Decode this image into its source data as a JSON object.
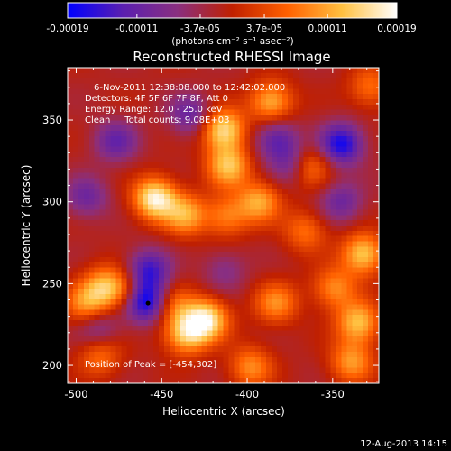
{
  "chart_data": {
    "type": "heatmap",
    "title": "Reconstructed RHESSI Image",
    "colorbar": {
      "ticks": [
        "-0.00019",
        "-0.00011",
        "-3.7e-05",
        "3.7e-05",
        "0.00011",
        "0.00019"
      ],
      "tick_values": [
        -0.00019,
        -0.00011,
        -3.7e-05,
        3.7e-05,
        0.00011,
        0.00019
      ],
      "range": [
        -0.00019,
        0.00019
      ],
      "unit_label": "(photons cm⁻² s⁻¹ asec⁻²)",
      "colormap": [
        "#0000ff",
        "#5a1fb0",
        "#8a2f80",
        "#c02000",
        "#ff6000",
        "#ffc040",
        "#ffffff"
      ]
    },
    "annotations": [
      "6-Nov-2011 12:38:08.000 to 12:42:02.000",
      "Detectors: 4F 5F 6F 7F 8F, Att 0",
      "Energy Range: 12.0 - 25.0 keV",
      "Clean     Total counts: 9.08E+03",
      "Position of Peak = [-454,302]"
    ],
    "xlabel": "Heliocentric X (arcsec)",
    "ylabel": "Heliocentric Y (arcsec)",
    "xlim": [
      -505,
      -323
    ],
    "ylim": [
      189,
      382
    ],
    "xticks": [
      -500,
      -450,
      -400,
      -350
    ],
    "yticks": [
      200,
      250,
      300,
      350
    ],
    "peak": [
      -454,
      302
    ],
    "min_marker": [
      -458,
      238
    ],
    "blobs": [
      {
        "x": -454,
        "y": 302,
        "v": 1.0
      },
      {
        "x": -436,
        "y": 292,
        "v": 0.65
      },
      {
        "x": -414,
        "y": 344,
        "v": 0.9
      },
      {
        "x": -411,
        "y": 322,
        "v": 0.75
      },
      {
        "x": -386,
        "y": 361,
        "v": 0.7
      },
      {
        "x": -393,
        "y": 300,
        "v": 0.65
      },
      {
        "x": -412,
        "y": 291,
        "v": 0.5
      },
      {
        "x": -364,
        "y": 322,
        "v": 0.6
      },
      {
        "x": -424,
        "y": 228,
        "v": 0.95
      },
      {
        "x": -436,
        "y": 219,
        "v": 0.75
      },
      {
        "x": -444,
        "y": 237,
        "v": 0.45
      },
      {
        "x": -383,
        "y": 238,
        "v": 0.55
      },
      {
        "x": -398,
        "y": 199,
        "v": 0.55
      },
      {
        "x": -484,
        "y": 248,
        "v": 0.6
      },
      {
        "x": -494,
        "y": 237,
        "v": 0.55
      },
      {
        "x": -471,
        "y": 246,
        "v": 0.45
      },
      {
        "x": -486,
        "y": 206,
        "v": 0.45
      },
      {
        "x": -332,
        "y": 268,
        "v": 0.8
      },
      {
        "x": -335,
        "y": 226,
        "v": 0.75
      },
      {
        "x": -349,
        "y": 247,
        "v": 0.55
      },
      {
        "x": -339,
        "y": 202,
        "v": 0.6
      },
      {
        "x": -366,
        "y": 282,
        "v": 0.45
      },
      {
        "x": -328,
        "y": 370,
        "v": 0.45
      },
      {
        "x": -459,
        "y": 239,
        "v": -1.0
      },
      {
        "x": -458,
        "y": 258,
        "v": -0.7
      },
      {
        "x": -345,
        "y": 335,
        "v": -0.85
      },
      {
        "x": -373,
        "y": 323,
        "v": -0.5
      },
      {
        "x": -494,
        "y": 303,
        "v": -0.45
      },
      {
        "x": -477,
        "y": 337,
        "v": -0.5
      },
      {
        "x": -433,
        "y": 353,
        "v": -0.5
      },
      {
        "x": -383,
        "y": 338,
        "v": -0.55
      },
      {
        "x": -345,
        "y": 300,
        "v": -0.45
      },
      {
        "x": -413,
        "y": 258,
        "v": -0.3
      },
      {
        "x": -487,
        "y": 223,
        "v": -0.4
      }
    ]
  },
  "footer": {
    "date": "12-Aug-2013 14:15"
  }
}
